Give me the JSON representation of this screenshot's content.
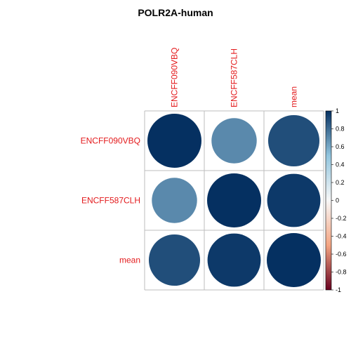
{
  "chart_data": {
    "type": "heatmap",
    "title": "POLR2A-human",
    "row_labels": [
      "ENCFF090VBQ",
      "ENCFF587CLH",
      "mean"
    ],
    "col_labels": [
      "ENCFF090VBQ",
      "ENCFF587CLH",
      "mean"
    ],
    "values": [
      [
        1.0,
        0.7,
        0.9
      ],
      [
        0.7,
        1.0,
        0.97
      ],
      [
        0.9,
        0.97,
        1.0
      ]
    ],
    "legend": {
      "placement": "right",
      "range": [
        -1,
        1
      ],
      "ticks": [
        "1",
        "0.8",
        "0.6",
        "0.4",
        "0.2",
        "0",
        "-0.2",
        "-0.4",
        "-0.6",
        "-0.8",
        "-1"
      ]
    },
    "grid": true
  },
  "colors": {
    "label": "#e31a1c",
    "grid": "#bebebe",
    "scale_neg_end": "#67001f",
    "scale_neg_mid": "#f4a582",
    "scale_zero": "#f7f7f7",
    "scale_pos_mid": "#92c5de",
    "scale_pos_end": "#053061"
  }
}
